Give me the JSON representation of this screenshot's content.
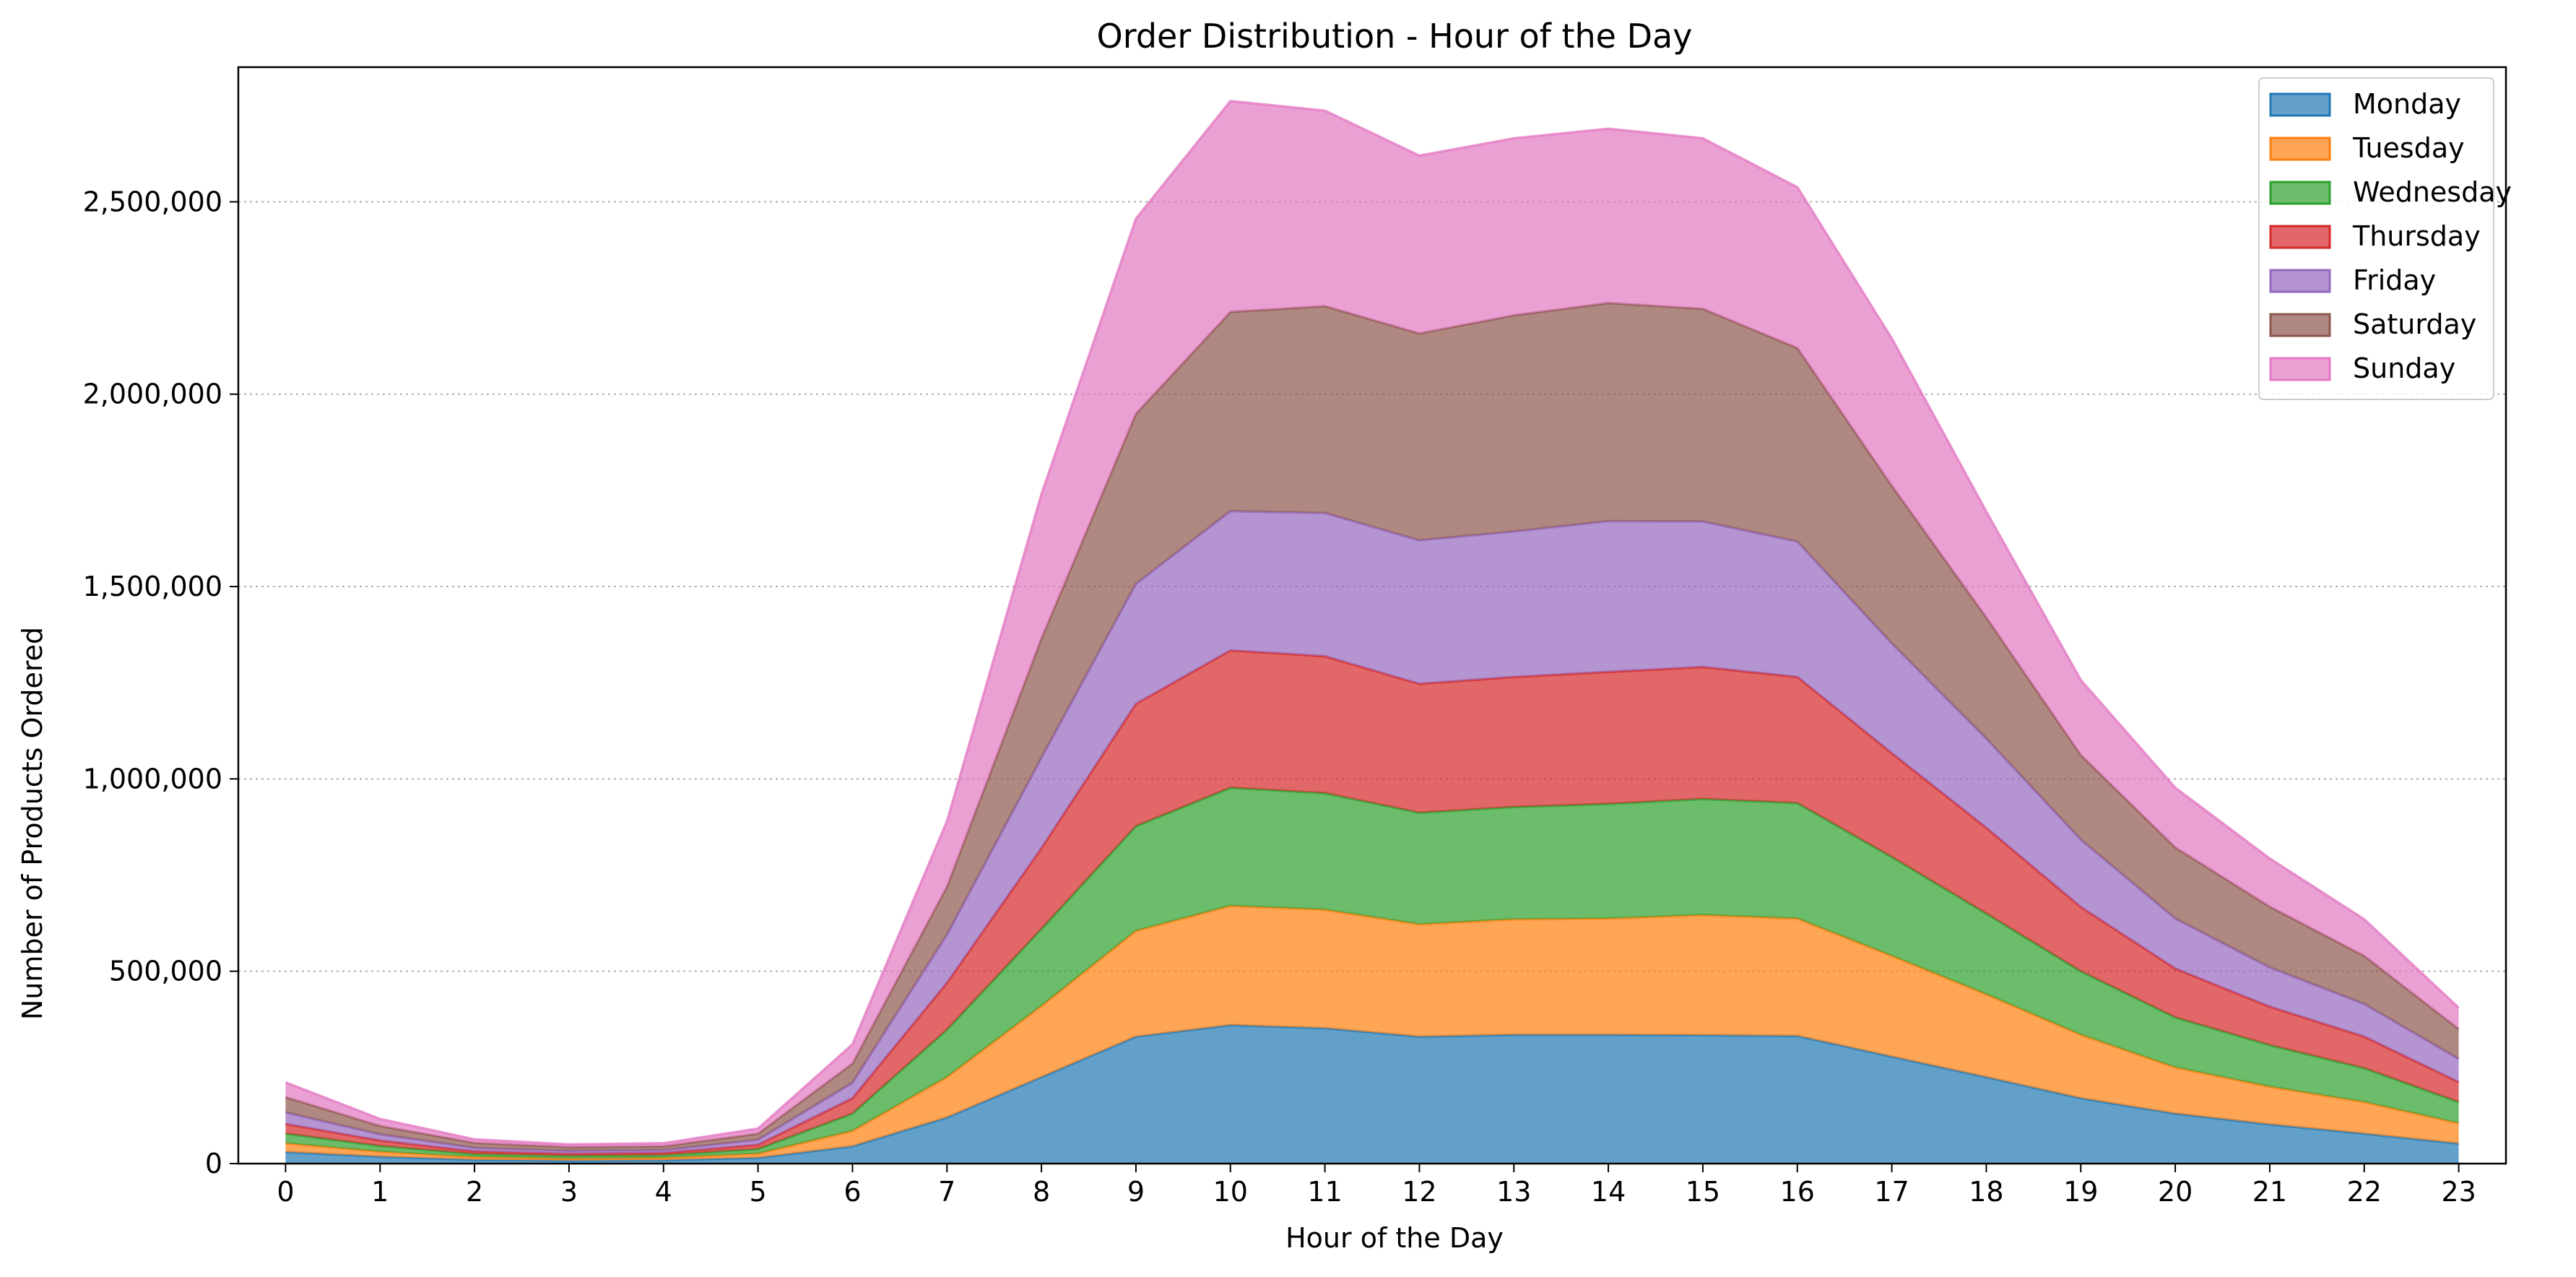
{
  "chart_data": {
    "type": "area",
    "stacked": true,
    "title": "Order Distribution - Hour of the Day",
    "xlabel": "Hour of the Day",
    "ylabel": "Number of Products Ordered",
    "x": [
      0,
      1,
      2,
      3,
      4,
      5,
      6,
      7,
      8,
      9,
      10,
      11,
      12,
      13,
      14,
      15,
      16,
      17,
      18,
      19,
      20,
      21,
      22,
      23
    ],
    "x_tick_labels": [
      "0",
      "1",
      "2",
      "3",
      "4",
      "5",
      "6",
      "7",
      "8",
      "9",
      "10",
      "11",
      "12",
      "13",
      "14",
      "15",
      "16",
      "17",
      "18",
      "19",
      "20",
      "21",
      "22",
      "23"
    ],
    "ylim": [
      0,
      2850000
    ],
    "y_ticks": [
      0,
      500000,
      1000000,
      1500000,
      2000000,
      2500000
    ],
    "y_tick_labels": [
      "0",
      "500,000",
      "1,000,000",
      "1,500,000",
      "2,000,000",
      "2,500,000"
    ],
    "grid": "horizontal dotted",
    "legend_position": "top-right",
    "series": [
      {
        "name": "Monday",
        "color": "#1f77b4",
        "values": [
          30000,
          18000,
          10000,
          8000,
          9000,
          15000,
          45000,
          120000,
          225000,
          330000,
          360000,
          352000,
          330000,
          335000,
          335000,
          334000,
          332000,
          278000,
          225000,
          170000,
          130000,
          102000,
          78000,
          52000
        ]
      },
      {
        "name": "Tuesday",
        "color": "#ff7f0e",
        "values": [
          23000,
          13000,
          7000,
          5000,
          6000,
          11000,
          40000,
          105000,
          185000,
          275000,
          310000,
          308000,
          292000,
          300000,
          302000,
          312000,
          305000,
          262000,
          215000,
          165000,
          120000,
          98000,
          82000,
          53000
        ]
      },
      {
        "name": "Wednesday",
        "color": "#2ca02c",
        "values": [
          25000,
          15000,
          8000,
          7000,
          7000,
          12000,
          45000,
          123000,
          200000,
          272000,
          307000,
          303000,
          290000,
          292000,
          298000,
          302000,
          300000,
          257000,
          210000,
          165000,
          130000,
          108000,
          88000,
          55000
        ]
      },
      {
        "name": "Thursday",
        "color": "#d62728",
        "values": [
          25000,
          14000,
          7000,
          6000,
          6000,
          11000,
          40000,
          122000,
          210000,
          318000,
          357000,
          356000,
          335000,
          338000,
          343000,
          343000,
          328000,
          270000,
          223000,
          167000,
          127000,
          100000,
          82000,
          52000
        ]
      },
      {
        "name": "Friday",
        "color": "#9467bd",
        "values": [
          30000,
          16000,
          9000,
          7000,
          7000,
          13000,
          40000,
          125000,
          235000,
          312000,
          362000,
          372000,
          373000,
          378000,
          392000,
          378000,
          352000,
          285000,
          232000,
          175000,
          130000,
          102000,
          85000,
          60000
        ]
      },
      {
        "name": "Saturday",
        "color": "#8c564b",
        "values": [
          40000,
          22000,
          13000,
          10000,
          10000,
          16000,
          50000,
          125000,
          310000,
          442000,
          518000,
          538000,
          538000,
          562000,
          567000,
          553000,
          503000,
          410000,
          315000,
          220000,
          185000,
          158000,
          125000,
          78000
        ]
      },
      {
        "name": "Sunday",
        "color": "#e377c2",
        "values": [
          38000,
          18000,
          9000,
          7000,
          8000,
          13000,
          50000,
          170000,
          375000,
          507000,
          548000,
          508000,
          462000,
          460000,
          453000,
          443000,
          418000,
          383000,
          275000,
          195000,
          155000,
          125000,
          95000,
          55000
        ]
      }
    ]
  }
}
